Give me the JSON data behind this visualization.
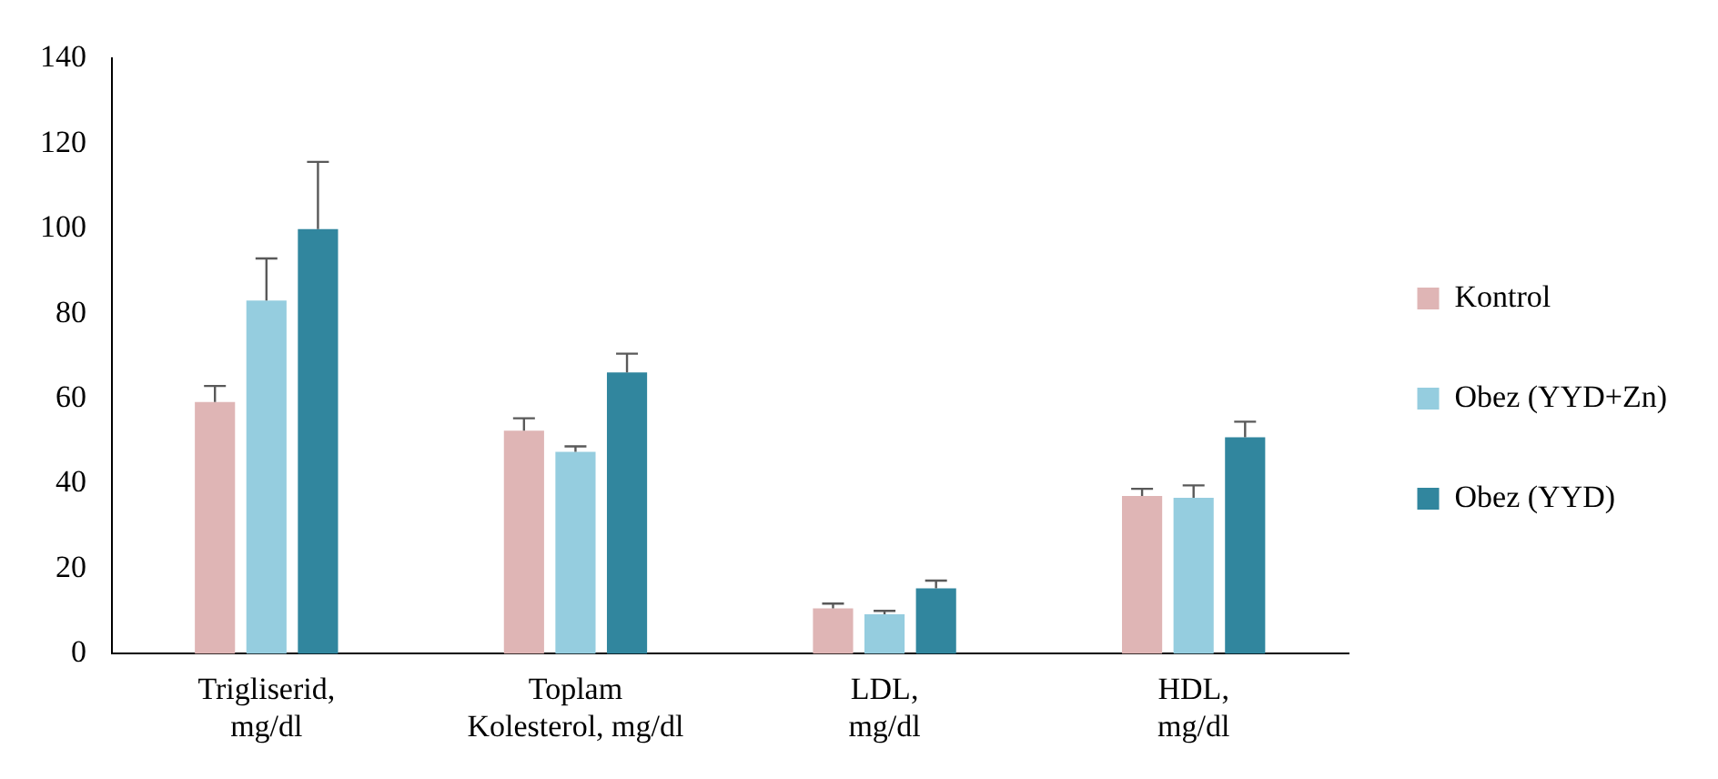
{
  "chart_data": {
    "type": "bar",
    "categories": [
      "Trigliserid,\nmg/dl",
      "Toplam\nKolesterol, mg/dl",
      "LDL,\nmg/dl",
      "HDL,\nmg/dl"
    ],
    "series": [
      {
        "name": "Kontrol",
        "color": "#dfb5b5",
        "values": [
          59.2,
          52.5,
          10.7,
          37.1
        ],
        "errors": [
          [
            59.2,
            63
          ],
          [
            52.5,
            55.4
          ],
          [
            10.7,
            11.8
          ],
          [
            37.1,
            38.8
          ]
        ]
      },
      {
        "name": "Obez (YYD+Zn)",
        "color": "#95cddf",
        "values": [
          83.1,
          47.5,
          9.3,
          36.7
        ],
        "errors": [
          [
            83.1,
            93
          ],
          [
            47.5,
            48.8
          ],
          [
            9.3,
            10.1
          ],
          [
            36.7,
            39.6
          ]
        ]
      },
      {
        "name": "Obez (YYD)",
        "color": "#31869e",
        "values": [
          99.9,
          66.2,
          15.4,
          50.9
        ],
        "errors": [
          [
            99.9,
            115.7
          ],
          [
            66.2,
            70.6
          ],
          [
            15.4,
            17.2
          ],
          [
            50.9,
            54.6
          ]
        ]
      }
    ],
    "ylim": [
      0,
      140
    ],
    "yticks": [
      0,
      20,
      40,
      60,
      80,
      100,
      120,
      140
    ],
    "grid": false,
    "legend": "right"
  }
}
